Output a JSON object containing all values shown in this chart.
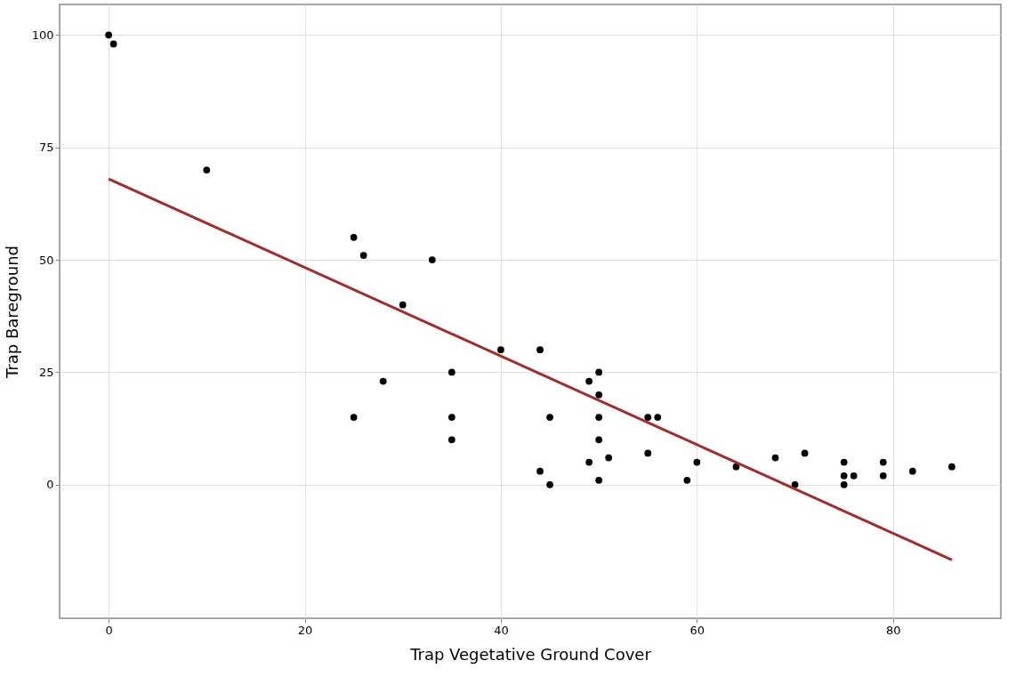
{
  "chart_data": {
    "type": "scatter",
    "xlabel": "Trap Vegetative Ground Cover",
    "ylabel": "Trap Bareground",
    "xlim": [
      -5,
      91
    ],
    "xticks": [
      0,
      20,
      40,
      60,
      80
    ],
    "ylim": [
      -29.7,
      106.8
    ],
    "yticks": [
      0,
      25,
      50,
      75,
      100
    ],
    "grid": true,
    "series": [
      {
        "marker": "circle",
        "color": "#000000",
        "x": [
          0,
          0.5,
          10,
          25,
          26,
          33,
          30,
          28,
          25,
          35,
          35,
          35,
          40,
          44,
          44,
          45,
          45,
          49,
          49,
          50,
          50,
          50,
          50,
          50,
          51,
          55,
          56,
          55,
          59,
          60,
          64,
          68,
          70,
          71,
          75,
          75,
          75,
          76,
          79,
          79,
          82,
          86
        ],
        "values": [
          100,
          98,
          70,
          55,
          51,
          50,
          40,
          23,
          15,
          25,
          15,
          10,
          30,
          30,
          3,
          15,
          0,
          23,
          5,
          25,
          20,
          15,
          10,
          1,
          6,
          15,
          15,
          7,
          1,
          5,
          4,
          6,
          0,
          7,
          5,
          2,
          0,
          2,
          5,
          2,
          3,
          4
        ]
      },
      {
        "type": "line",
        "color": "#a52a2a",
        "line_style": "solid",
        "x": [
          0,
          86
        ],
        "values": [
          68,
          -16.7
        ]
      }
    ]
  }
}
